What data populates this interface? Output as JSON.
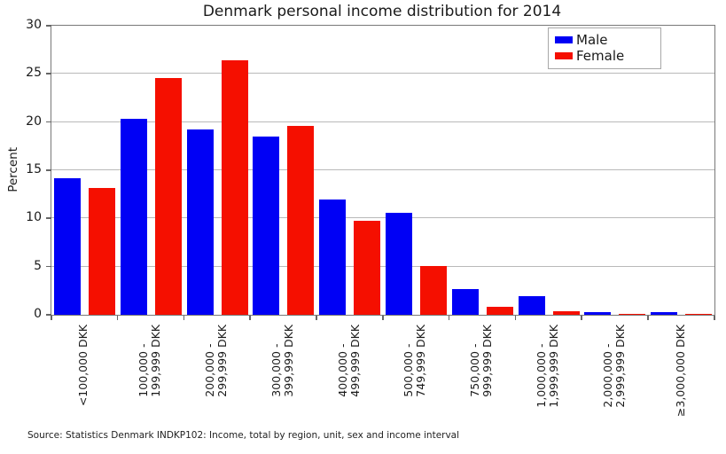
{
  "title": "Denmark personal income distribution for 2014",
  "source": "Source: Statistics Denmark INDKP102: Income, total by region, unit, sex and income interval",
  "chart_data": {
    "type": "bar",
    "title": "Denmark personal income distribution for 2014",
    "xlabel": "",
    "ylabel": "Percent",
    "ylim": [
      0,
      30
    ],
    "yticks": [
      0,
      5,
      10,
      15,
      20,
      25,
      30
    ],
    "grid": "horizontal",
    "legend_position": "upper right",
    "tick_label_rotation": 90,
    "categories": [
      [
        "<100,000 DKK"
      ],
      [
        "100,000 -",
        "199,999 DKK"
      ],
      [
        "200,000 -",
        "299,999 DKK"
      ],
      [
        "300,000 -",
        "399,999 DKK"
      ],
      [
        "400,000 -",
        "499,999 DKK"
      ],
      [
        "500,000 -",
        "749,999 DKK"
      ],
      [
        "750,000 -",
        "999,999 DKK"
      ],
      [
        "1,000,000 -",
        "1,999,999 DKK"
      ],
      [
        "2,000,000 -",
        "2,999,999 DKK"
      ],
      [
        "≥3,000,000 DKK"
      ]
    ],
    "series": [
      {
        "name": "Male",
        "color": "#0000f5",
        "values": [
          14.2,
          20.3,
          19.2,
          18.5,
          12.0,
          10.6,
          2.7,
          1.9,
          0.25,
          0.25
        ]
      },
      {
        "name": "Female",
        "color": "#f50f00",
        "values": [
          13.2,
          24.6,
          26.4,
          19.6,
          9.8,
          5.1,
          0.85,
          0.4,
          0.1,
          0.05
        ]
      }
    ]
  }
}
